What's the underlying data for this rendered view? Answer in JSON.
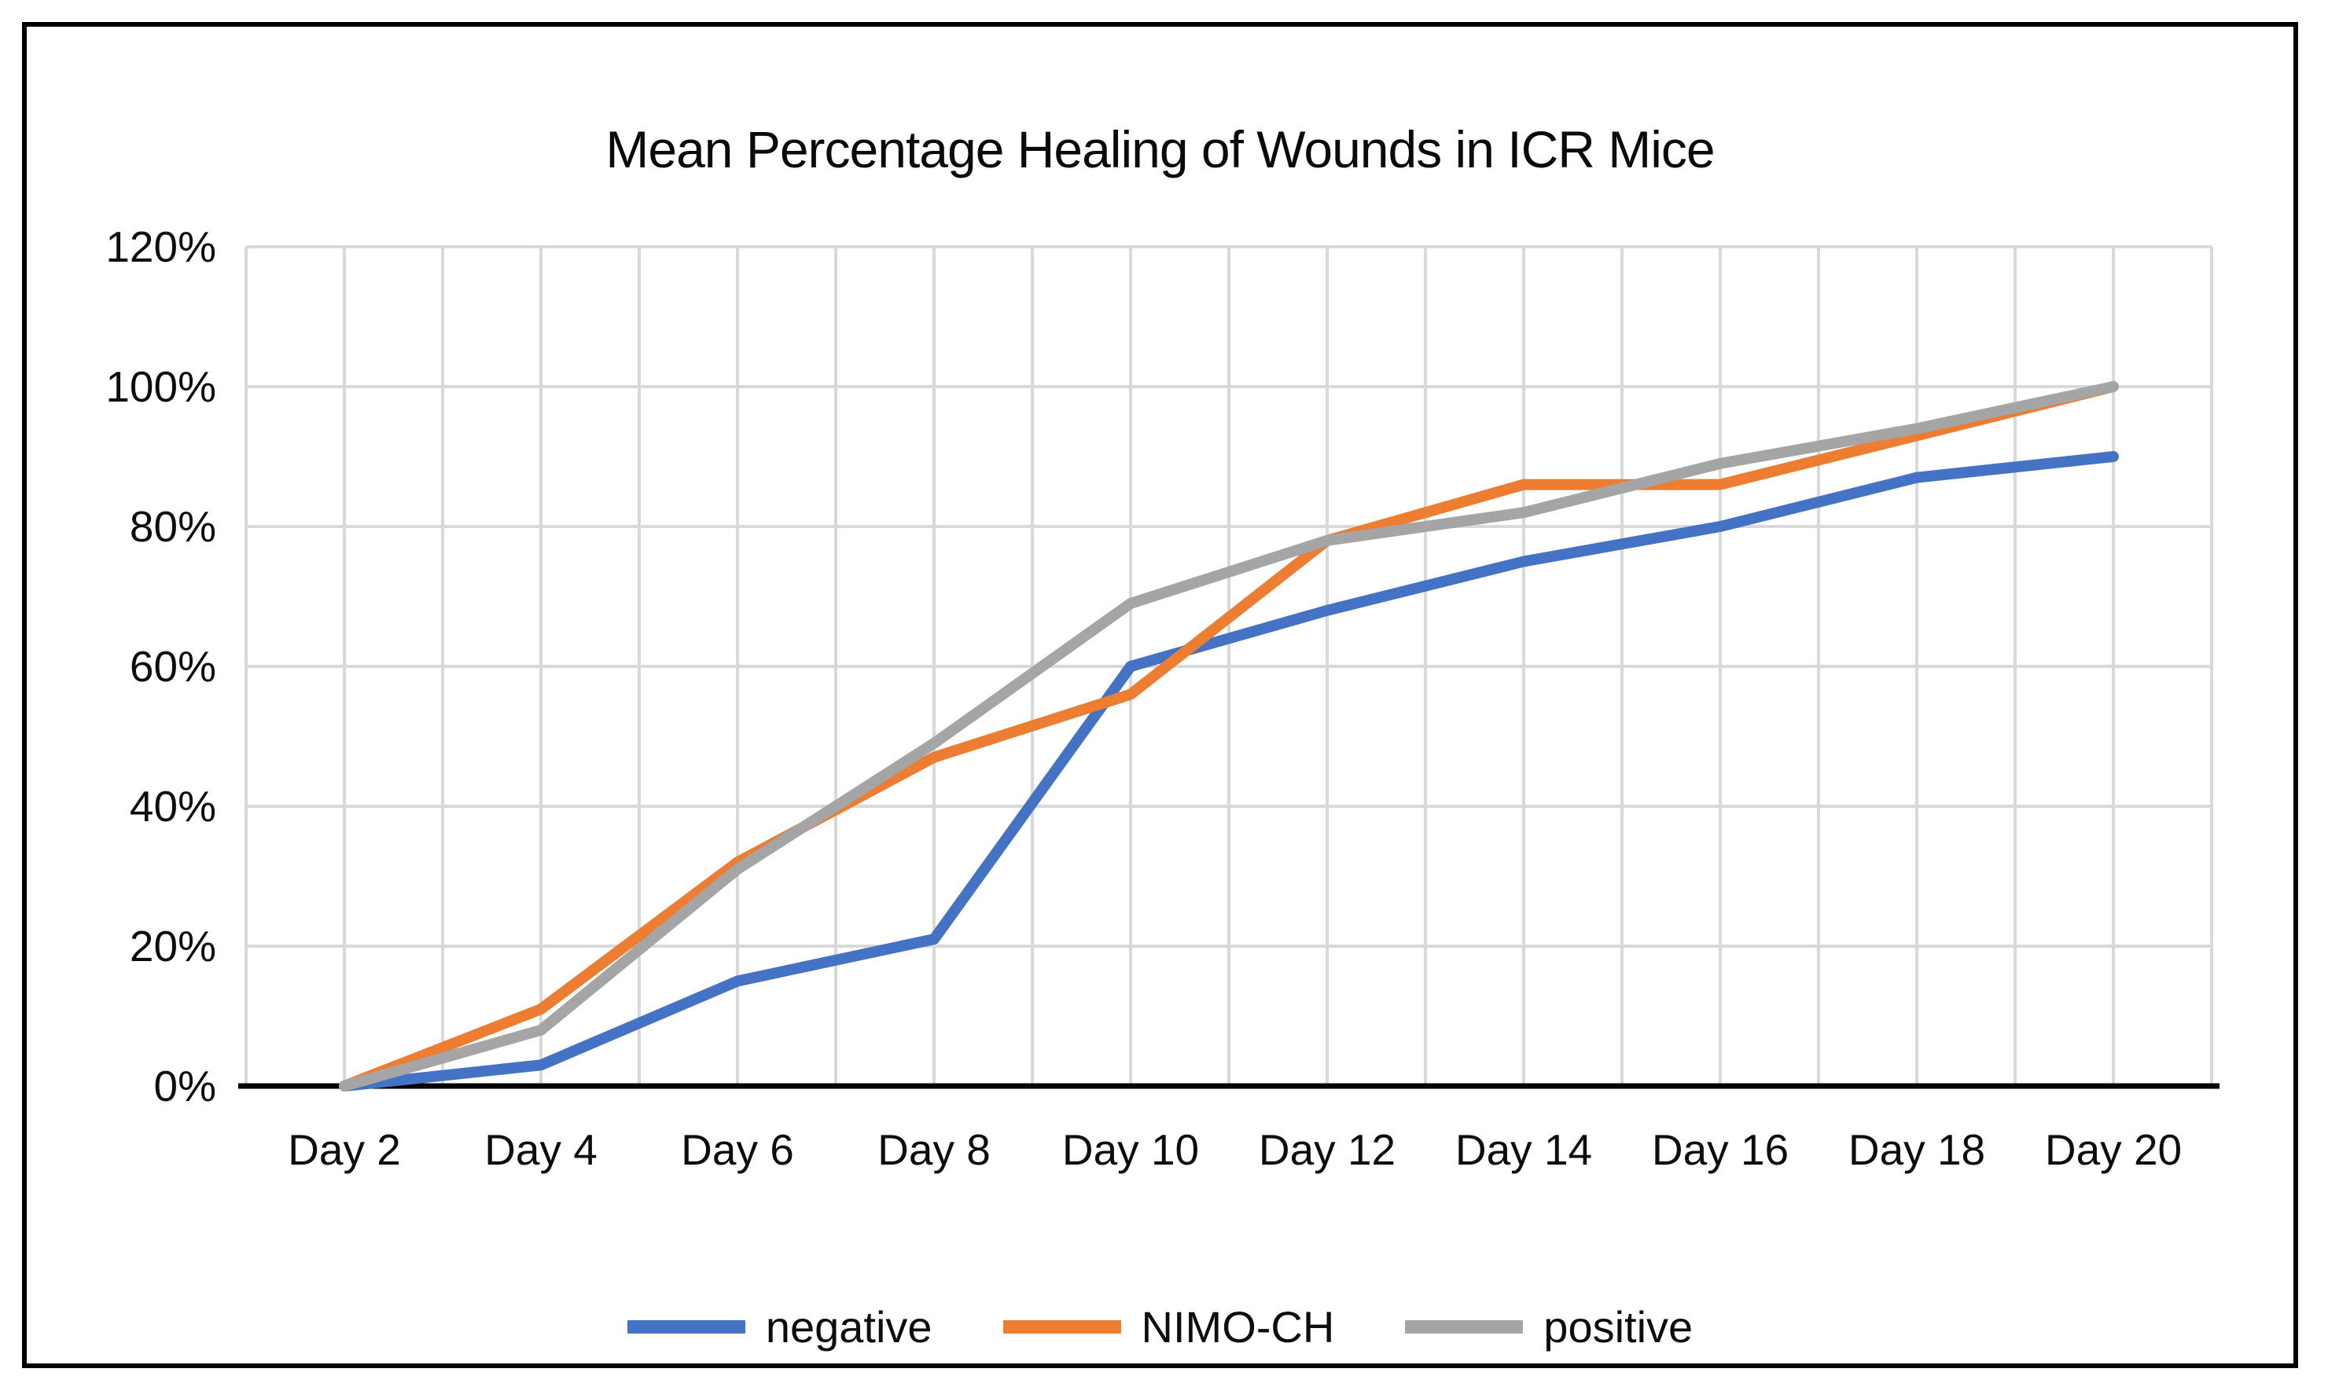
{
  "chart_data": {
    "type": "line",
    "title": "Mean Percentage Healing of Wounds in ICR Mice",
    "categories": [
      "Day 2",
      "Day 4",
      "Day 6",
      "Day 8",
      "Day 10",
      "Day 12",
      "Day 14",
      "Day 16",
      "Day 18",
      "Day 20"
    ],
    "series": [
      {
        "name": "negative",
        "color": "#4472C4",
        "values": [
          0,
          3,
          15,
          21,
          60,
          68,
          75,
          80,
          87,
          90
        ]
      },
      {
        "name": "NIMO-CH",
        "color": "#ED7D31",
        "values": [
          0,
          11,
          32,
          47,
          56,
          78,
          86,
          86,
          93,
          100
        ]
      },
      {
        "name": "positive",
        "color": "#A5A5A5",
        "values": [
          0,
          8,
          31,
          49,
          69,
          78,
          82,
          89,
          94,
          100
        ]
      }
    ],
    "y_axis": {
      "min": 0,
      "max": 120,
      "step": 20,
      "labels": [
        "0%",
        "20%",
        "40%",
        "60%",
        "80%",
        "100%",
        "120%"
      ]
    },
    "x_axis": {
      "minor_gridlines_per_category": 2
    },
    "legend_position": "bottom",
    "grid_on": true,
    "gridline_color": "#D9D9D9",
    "axis_line_color": "#000000",
    "background_color": "#FFFFFF",
    "ylim": [
      0,
      120
    ]
  }
}
